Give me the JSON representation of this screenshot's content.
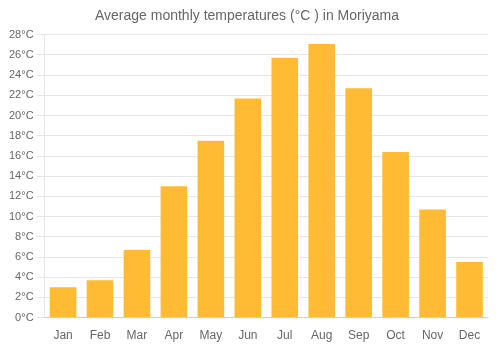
{
  "chart_data": {
    "type": "bar",
    "title": "Average monthly temperatures (°C ) in Moriyama",
    "categories": [
      "Jan",
      "Feb",
      "Mar",
      "Apr",
      "May",
      "Jun",
      "Jul",
      "Aug",
      "Sep",
      "Oct",
      "Nov",
      "Dec"
    ],
    "values": [
      3.0,
      3.7,
      6.7,
      13.0,
      17.5,
      21.7,
      25.7,
      27.1,
      22.7,
      16.4,
      10.7,
      5.5
    ],
    "color": "#FFBB33",
    "ylim": [
      0,
      28
    ],
    "yticks": [
      {
        "value": 0,
        "label": "0°C"
      },
      {
        "value": 2,
        "label": "2°C"
      },
      {
        "value": 4,
        "label": "4°C"
      },
      {
        "value": 6,
        "label": "6°C"
      },
      {
        "value": 8,
        "label": "8°C"
      },
      {
        "value": 10,
        "label": "10°C"
      },
      {
        "value": 12,
        "label": "12°C"
      },
      {
        "value": 14,
        "label": "14°C"
      },
      {
        "value": 16,
        "label": "16°C"
      },
      {
        "value": 18,
        "label": "18°C"
      },
      {
        "value": 20,
        "label": "20°C"
      },
      {
        "value": 22,
        "label": "22°C"
      },
      {
        "value": 24,
        "label": "24°C"
      },
      {
        "value": 26,
        "label": "26°C"
      },
      {
        "value": 28,
        "label": "28°C"
      }
    ],
    "grid": true
  }
}
